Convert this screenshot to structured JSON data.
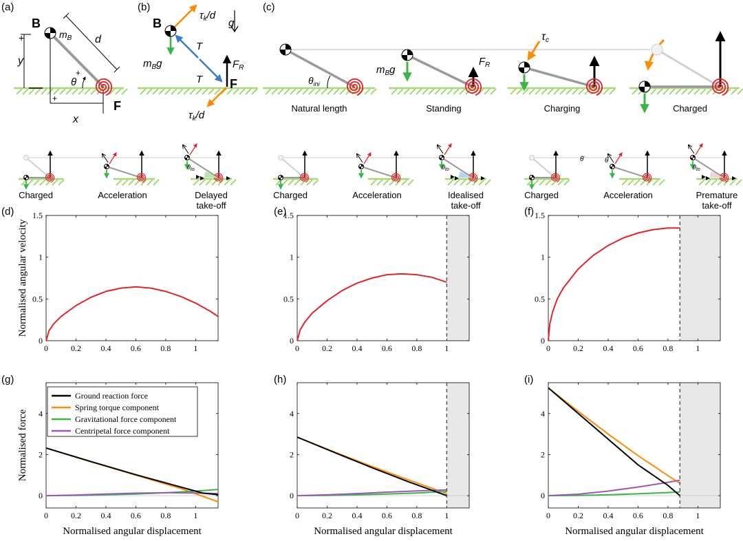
{
  "panel_labels": [
    "(a)",
    "(b)",
    "(c)",
    "(d)",
    "(e)",
    "(f)",
    "(g)",
    "(h)",
    "(i)"
  ],
  "panel_a": {
    "B": "B",
    "F": "F",
    "mB": "m",
    "mB_sub": "B",
    "d": "d",
    "y": "y",
    "x": "x",
    "theta": "θ",
    "plus": "+"
  },
  "panel_b": {
    "B": "B",
    "F": "F",
    "tau_top": "τ",
    "tau_sub": "k",
    "tau_d": "/d",
    "g": "g",
    "mBg": "m",
    "mBg_sub": "B",
    "mBg_g": "g",
    "T": "T",
    "FR": "F",
    "FR_sub": "R"
  },
  "panel_c": {
    "stage_labels": [
      "Natural length",
      "Standing",
      "Charging",
      "Charged"
    ],
    "theta_ini": "θ",
    "theta_ini_sub": "ini",
    "mBg": "m",
    "mBg_sub": "B",
    "mBg_g": "g",
    "FR": "F",
    "FR_sub": "R",
    "tau_c": "τ",
    "tau_c_sub": "c"
  },
  "takeoff_groups": [
    {
      "labels": [
        "Charged",
        "Acceleration",
        "Delayed\ntake-off"
      ],
      "theta_to": "θ",
      "theta_to_sub": "to"
    },
    {
      "labels": [
        "Charged",
        "Acceleration",
        "Idealised\ntake-off"
      ],
      "theta_to": "θ",
      "theta_to_sub": "to"
    },
    {
      "labels": [
        "Charged",
        "Acceleration",
        "Premature\ntake-off"
      ],
      "theta_to": "θ",
      "theta_to_sub": "to",
      "theta_ddot": "θ̈",
      "theta_dot": "θ"
    }
  ],
  "colors": {
    "red": "#e0242b",
    "green": "#3cb44b",
    "orange": "#ff8c00",
    "purple": "#9b59b6",
    "black": "#000000",
    "blue": "#3a7dc9",
    "ground": "#a8d878",
    "link": "#9a9a9a",
    "shade": "#e8e8e8"
  },
  "chart_data": [
    {
      "type": "line",
      "panel": "(d)",
      "ylabel": "Normalised angular velocity",
      "xlabel": "",
      "xlim": [
        0,
        1.15
      ],
      "ylim": [
        0,
        1.5
      ],
      "xticks": [
        "0",
        "0.2",
        "0.4",
        "0.6",
        "0.8",
        "1"
      ],
      "yticks": [
        "0",
        "0.5",
        "1",
        "1.5"
      ],
      "series": [
        {
          "color": "#e0242b",
          "x": [
            0,
            0.02,
            0.05,
            0.1,
            0.2,
            0.3,
            0.4,
            0.5,
            0.6,
            0.7,
            0.8,
            0.9,
            1.0,
            1.1,
            1.15
          ],
          "y": [
            0,
            0.12,
            0.2,
            0.29,
            0.42,
            0.52,
            0.59,
            0.63,
            0.645,
            0.63,
            0.59,
            0.53,
            0.45,
            0.35,
            0.29
          ]
        }
      ]
    },
    {
      "type": "line",
      "panel": "(e)",
      "ylabel": "",
      "xlabel": "",
      "xlim": [
        0,
        1.15
      ],
      "ylim": [
        0,
        1.5
      ],
      "cutoff": 1.0,
      "xticks": [
        "0",
        "0.2",
        "0.4",
        "0.6",
        "0.8",
        "1"
      ],
      "yticks": [
        "0",
        "0.5",
        "1",
        "1.5"
      ],
      "series": [
        {
          "color": "#e0242b",
          "x": [
            0,
            0.02,
            0.05,
            0.1,
            0.2,
            0.3,
            0.4,
            0.5,
            0.6,
            0.7,
            0.8,
            0.9,
            1.0
          ],
          "y": [
            0,
            0.13,
            0.22,
            0.33,
            0.48,
            0.6,
            0.69,
            0.75,
            0.79,
            0.8,
            0.79,
            0.76,
            0.7
          ]
        }
      ]
    },
    {
      "type": "line",
      "panel": "(f)",
      "ylabel": "",
      "xlabel": "",
      "xlim": [
        0,
        1.15
      ],
      "ylim": [
        0,
        1.5
      ],
      "cutoff": 0.88,
      "xticks": [
        "0",
        "0.2",
        "0.4",
        "0.6",
        "0.8",
        "1"
      ],
      "yticks": [
        "0",
        "0.5",
        "1",
        "1.5"
      ],
      "series": [
        {
          "color": "#e0242b",
          "x": [
            0,
            0.01,
            0.03,
            0.06,
            0.1,
            0.2,
            0.3,
            0.4,
            0.5,
            0.6,
            0.7,
            0.8,
            0.88
          ],
          "y": [
            0,
            0.2,
            0.35,
            0.5,
            0.63,
            0.86,
            1.02,
            1.14,
            1.23,
            1.29,
            1.33,
            1.35,
            1.35
          ]
        }
      ]
    },
    {
      "type": "line",
      "panel": "(g)",
      "ylabel": "Normalised force",
      "xlabel": "Normalised angular displacement",
      "xlim": [
        0,
        1.15
      ],
      "ylim": [
        -0.6,
        5.5
      ],
      "xticks": [
        "0",
        "0.2",
        "0.4",
        "0.6",
        "0.8",
        "1"
      ],
      "yticks": [
        "0",
        "2",
        "4"
      ],
      "legend": [
        "Ground reaction force",
        "Spring torque component",
        "Gravitational force component",
        "Centripetal force component"
      ],
      "series": [
        {
          "name": "Spring torque component",
          "color": "#ff8c00",
          "x": [
            0,
            0.3,
            0.6,
            0.9,
            1.15
          ],
          "y": [
            2.32,
            1.65,
            1.0,
            0.35,
            -0.3
          ]
        },
        {
          "name": "Gravitational force component",
          "color": "#3cb44b",
          "x": [
            0,
            0.2,
            0.4,
            0.6,
            0.8,
            1.0,
            1.15
          ],
          "y": [
            0,
            0.01,
            0.04,
            0.08,
            0.14,
            0.22,
            0.3
          ]
        },
        {
          "name": "Centripetal force component",
          "color": "#9b59b6",
          "x": [
            0,
            0.2,
            0.4,
            0.6,
            0.8,
            1.0,
            1.15
          ],
          "y": [
            0,
            0.03,
            0.08,
            0.12,
            0.14,
            0.13,
            0.1
          ]
        },
        {
          "name": "Ground reaction force",
          "color": "#000000",
          "x": [
            0,
            0.3,
            0.6,
            0.8,
            0.95,
            1.05,
            1.15
          ],
          "y": [
            2.32,
            1.66,
            1.02,
            0.62,
            0.32,
            0.12,
            0.05
          ]
        }
      ]
    },
    {
      "type": "line",
      "panel": "(h)",
      "ylabel": "",
      "xlabel": "Normalised angular displacement",
      "xlim": [
        0,
        1.15
      ],
      "ylim": [
        -0.6,
        5.5
      ],
      "cutoff": 1.0,
      "xticks": [
        "0",
        "0.2",
        "0.4",
        "0.6",
        "0.8",
        "1"
      ],
      "yticks": [
        "0",
        "2",
        "4"
      ],
      "series": [
        {
          "name": "Spring torque component",
          "color": "#ff8c00",
          "x": [
            0,
            0.25,
            0.5,
            0.75,
            1.0
          ],
          "y": [
            2.85,
            2.12,
            1.42,
            0.75,
            0.1
          ]
        },
        {
          "name": "Gravitational force component",
          "color": "#3cb44b",
          "x": [
            0,
            0.2,
            0.4,
            0.6,
            0.8,
            1.0
          ],
          "y": [
            0,
            0.01,
            0.04,
            0.08,
            0.13,
            0.2
          ]
        },
        {
          "name": "Centripetal force component",
          "color": "#9b59b6",
          "x": [
            0,
            0.2,
            0.4,
            0.6,
            0.8,
            1.0
          ],
          "y": [
            0,
            0.04,
            0.1,
            0.17,
            0.23,
            0.28
          ]
        },
        {
          "name": "Ground reaction force",
          "color": "#000000",
          "x": [
            0,
            0.25,
            0.5,
            0.75,
            1.0
          ],
          "y": [
            2.85,
            2.1,
            1.36,
            0.66,
            0.0
          ]
        }
      ]
    },
    {
      "type": "line",
      "panel": "(i)",
      "ylabel": "",
      "xlabel": "Normalised angular displacement",
      "xlim": [
        0,
        1.15
      ],
      "ylim": [
        -0.6,
        5.5
      ],
      "cutoff": 0.88,
      "xticks": [
        "0",
        "0.2",
        "0.4",
        "0.6",
        "0.8",
        "1"
      ],
      "yticks": [
        "0",
        "2",
        "4"
      ],
      "series": [
        {
          "name": "Spring torque component",
          "color": "#ff8c00",
          "x": [
            0,
            0.2,
            0.4,
            0.6,
            0.8,
            0.88
          ],
          "y": [
            5.25,
            4.1,
            3.0,
            1.95,
            0.98,
            0.6
          ]
        },
        {
          "name": "Gravitational force component",
          "color": "#3cb44b",
          "x": [
            0,
            0.2,
            0.4,
            0.6,
            0.8,
            0.88
          ],
          "y": [
            0,
            0.01,
            0.04,
            0.09,
            0.15,
            0.18
          ]
        },
        {
          "name": "Centripetal force component",
          "color": "#9b59b6",
          "x": [
            0,
            0.2,
            0.4,
            0.6,
            0.8,
            0.88
          ],
          "y": [
            0,
            0.07,
            0.22,
            0.42,
            0.65,
            0.75
          ]
        },
        {
          "name": "Ground reaction force",
          "color": "#000000",
          "x": [
            0,
            0.2,
            0.4,
            0.6,
            0.8,
            0.88
          ],
          "y": [
            5.25,
            4.0,
            2.75,
            1.5,
            0.5,
            0.0
          ]
        }
      ]
    }
  ]
}
